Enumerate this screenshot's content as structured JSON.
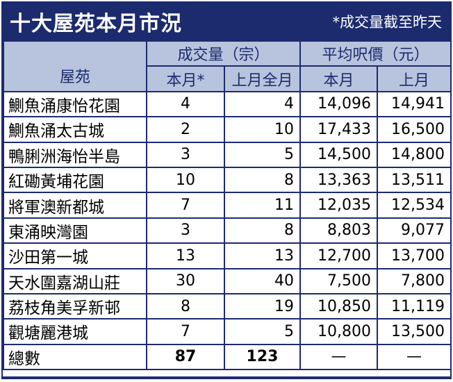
{
  "header": {
    "title": "十大屋苑本月市況",
    "note": "*成交量截至昨天"
  },
  "columns": {
    "estate": "屋苑",
    "volume_group": "成交量（宗）",
    "price_group": "平均呎價（元）",
    "volume_this": "本月*",
    "volume_last": "上月全月",
    "price_this": "本月",
    "price_last": "上月"
  },
  "rows": [
    {
      "name": "鰂魚涌康怡花園",
      "vol_this": "4",
      "vol_last": "4",
      "price_this": "14,096",
      "price_last": "14,941"
    },
    {
      "name": "鰂魚涌太古城",
      "vol_this": "2",
      "vol_last": "10",
      "price_this": "17,433",
      "price_last": "16,500"
    },
    {
      "name": "鴨脷洲海怡半島",
      "vol_this": "3",
      "vol_last": "5",
      "price_this": "14,500",
      "price_last": "14,800"
    },
    {
      "name": "紅磡黃埔花園",
      "vol_this": "10",
      "vol_last": "8",
      "price_this": "13,363",
      "price_last": "13,511"
    },
    {
      "name": "將軍澳新都城",
      "vol_this": "7",
      "vol_last": "11",
      "price_this": "12,035",
      "price_last": "12,534"
    },
    {
      "name": "東涌映灣園",
      "vol_this": "3",
      "vol_last": "8",
      "price_this": "8,803",
      "price_last": "9,077"
    },
    {
      "name": "沙田第一城",
      "vol_this": "13",
      "vol_last": "13",
      "price_this": "12,700",
      "price_last": "13,700"
    },
    {
      "name": "天水圍嘉湖山莊",
      "vol_this": "30",
      "vol_last": "40",
      "price_this": "7,500",
      "price_last": "7,800"
    },
    {
      "name": "荔枝角美孚新邨",
      "vol_this": "8",
      "vol_last": "19",
      "price_this": "10,850",
      "price_last": "11,119"
    },
    {
      "name": "觀塘麗港城",
      "vol_this": "7",
      "vol_last": "5",
      "price_this": "10,800",
      "price_last": "13,500"
    }
  ],
  "total": {
    "label": "總數",
    "vol_this": "87",
    "vol_last": "123",
    "price_this": "—",
    "price_last": "—"
  },
  "colors": {
    "navy": "#1c2b6e",
    "header_fill": "#b8c3dd"
  }
}
